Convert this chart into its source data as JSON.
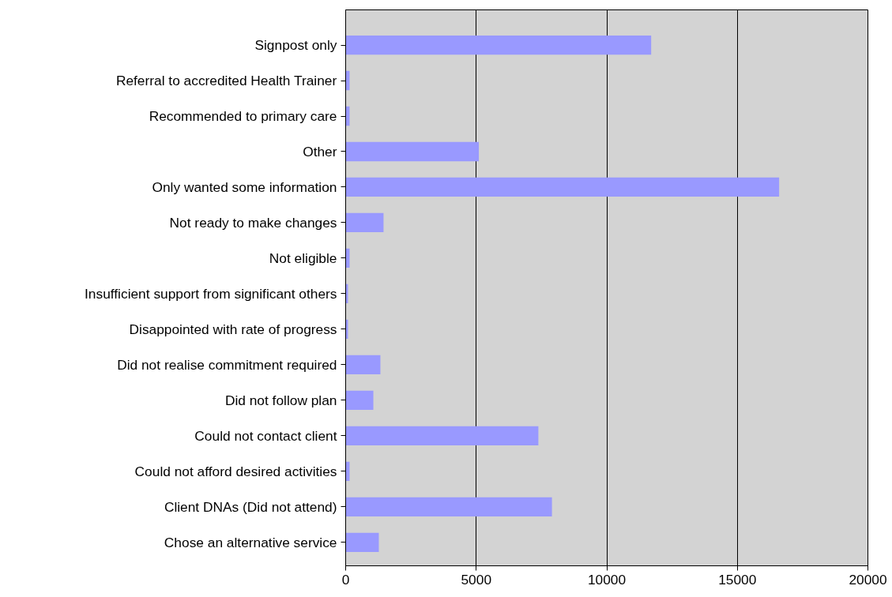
{
  "chart_data": {
    "type": "bar",
    "orientation": "horizontal",
    "categories": [
      "Signpost only",
      "Referral to accredited Health Trainer",
      "Recommended to primary care",
      "Other",
      "Only wanted some information",
      "Not ready to make changes",
      "Not eligible",
      "Insufficient support from significant others",
      "Disappointed with rate of progress",
      "Did not realise commitment required",
      "Did not follow plan",
      "Could not contact client",
      "Could not afford desired activities",
      "Client DNAs (Did not attend)",
      "Chose an alternative service"
    ],
    "values": [
      11700,
      150,
      150,
      5100,
      16600,
      1450,
      150,
      90,
      90,
      1330,
      1060,
      7380,
      150,
      7900,
      1270
    ],
    "color": "#9999ff",
    "xlim": [
      0,
      20000
    ],
    "xticks": [
      0,
      5000,
      10000,
      15000,
      20000
    ],
    "grid": "x"
  }
}
